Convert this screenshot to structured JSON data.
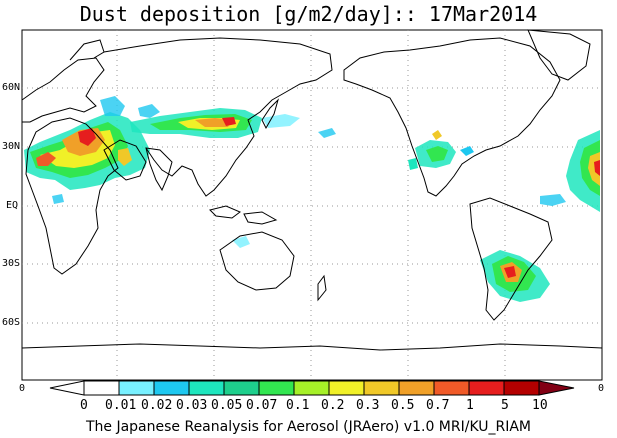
{
  "title": "Dust deposition [g/m2/day]:: 17Mar2014",
  "lat_labels": [
    "60N",
    "30N",
    "EQ",
    "30S",
    "60S"
  ],
  "lon_edge_labels": [
    "0",
    "0"
  ],
  "colorbar": {
    "labels": [
      "0",
      "0.01",
      "0.02",
      "0.03",
      "0.05",
      "0.07",
      "0.1",
      "0.2",
      "0.3",
      "0.5",
      "0.7",
      "1",
      "5",
      "10"
    ],
    "colors": [
      "#ffffff",
      "#ffffff",
      "#78f0ff",
      "#1ec8f0",
      "#1ee6be",
      "#1ecf8c",
      "#32e650",
      "#a6f028",
      "#f0f028",
      "#f0c828",
      "#f0a028",
      "#f05a28",
      "#e61e1e",
      "#b40000",
      "#820014"
    ]
  },
  "footer": "The Japanese Reanalysis for Aerosol (JRAero) v1.0 MRI/KU_RIAM"
}
